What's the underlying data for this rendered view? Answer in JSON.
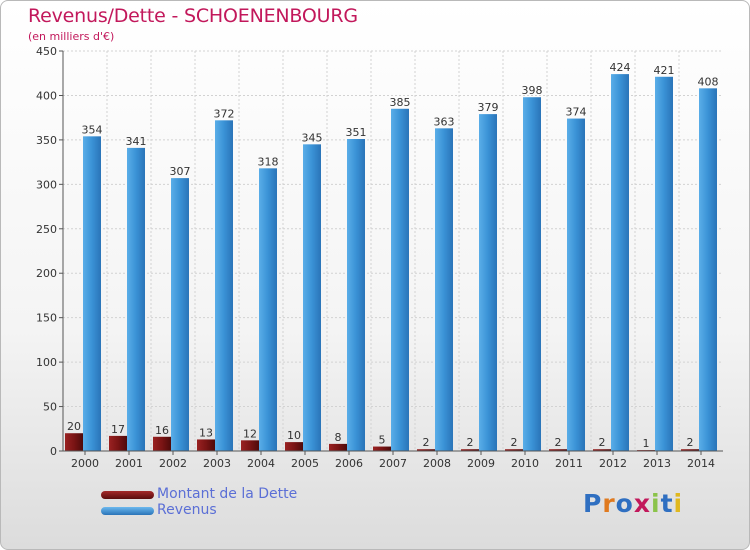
{
  "colors": {
    "title": "#c2185b",
    "dette": "#7a1414",
    "revenus": "#2f86c8",
    "legend_text": "#5b6fd6"
  },
  "brand": {
    "text": "Proxiti",
    "letter_colors": [
      "#2f6fc1",
      "#e07a1f",
      "#2f6fc1",
      "#c2185b",
      "#8bc34a",
      "#2f6fc1",
      "#e0b81f"
    ]
  },
  "chart_data": {
    "type": "bar",
    "title": "Revenus/Dette - SCHOENENBOURG",
    "subtitle": "(en milliers d'€)",
    "xlabel": "",
    "ylabel": "",
    "ylim": [
      0,
      450
    ],
    "yticks": [
      0,
      50,
      100,
      150,
      200,
      250,
      300,
      350,
      400,
      450
    ],
    "grid": true,
    "legend_position": "bottom-left",
    "categories": [
      "2000",
      "2001",
      "2002",
      "2003",
      "2004",
      "2005",
      "2006",
      "2007",
      "2008",
      "2009",
      "2010",
      "2011",
      "2012",
      "2013",
      "2014"
    ],
    "series": [
      {
        "name": "Montant de la Dette",
        "values": [
          20,
          17,
          16,
          13,
          12,
          10,
          8,
          5,
          2,
          2,
          2,
          2,
          2,
          1,
          2
        ]
      },
      {
        "name": "Revenus",
        "values": [
          354,
          341,
          307,
          372,
          318,
          345,
          351,
          385,
          363,
          379,
          398,
          374,
          424,
          421,
          408
        ]
      }
    ]
  }
}
